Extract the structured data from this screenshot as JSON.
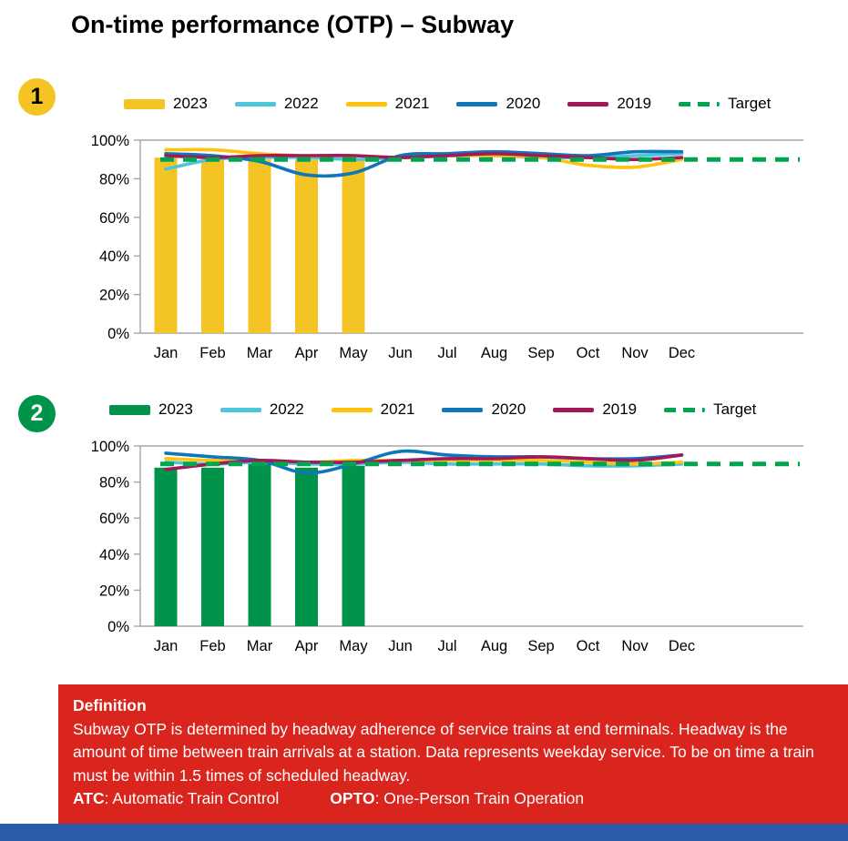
{
  "page": {
    "title": "On-time performance (OTP) – Subway",
    "colors": {
      "definition_bg": "#D9251D",
      "footer_bar": "#2B5CAA",
      "axis": "#A6A6A6",
      "text": "#000000"
    }
  },
  "chart_data": [
    {
      "type": "bar",
      "subtype": "bar-and-line combo, monthly OTP percent",
      "badge": {
        "label": "1",
        "bg": "#F4C425",
        "fg": "#000000"
      },
      "categories": [
        "Jan",
        "Feb",
        "Mar",
        "Apr",
        "May",
        "Jun",
        "Jul",
        "Aug",
        "Sep",
        "Oct",
        "Nov",
        "Dec"
      ],
      "ylim": [
        0,
        100
      ],
      "yticks": [
        0,
        20,
        40,
        60,
        80,
        100
      ],
      "ytick_suffix": "%",
      "legend_position": "top",
      "grid": "rules at 0% and 100% only",
      "series": [
        {
          "name": "2023",
          "type": "bar",
          "color": "#F4C425",
          "values": [
            91,
            91,
            90,
            90,
            90,
            null,
            null,
            null,
            null,
            null,
            null,
            null
          ]
        },
        {
          "name": "2022",
          "type": "line",
          "color": "#4DC5DB",
          "values": [
            85,
            90,
            91,
            91,
            90,
            91,
            92,
            92,
            91,
            91,
            92,
            93
          ]
        },
        {
          "name": "2021",
          "type": "line",
          "color": "#FFC20E",
          "values": [
            95,
            95,
            93,
            92,
            92,
            91,
            92,
            92,
            91,
            87,
            86,
            90
          ]
        },
        {
          "name": "2020",
          "type": "line",
          "color": "#0F76BB",
          "values": [
            93,
            92,
            89,
            82,
            83,
            92,
            93,
            94,
            93,
            92,
            94,
            94
          ]
        },
        {
          "name": "2019",
          "type": "line",
          "color": "#A21859",
          "values": [
            92,
            91,
            92,
            92,
            92,
            91,
            92,
            93,
            92,
            91,
            90,
            91
          ]
        },
        {
          "name": "Target",
          "type": "dashed",
          "color": "#00A550",
          "value": 90
        }
      ]
    },
    {
      "type": "bar",
      "subtype": "bar-and-line combo, monthly OTP percent",
      "badge": {
        "label": "2",
        "bg": "#00944A",
        "fg": "#FFFFFF"
      },
      "categories": [
        "Jan",
        "Feb",
        "Mar",
        "Apr",
        "May",
        "Jun",
        "Jul",
        "Aug",
        "Sep",
        "Oct",
        "Nov",
        "Dec"
      ],
      "ylim": [
        0,
        100
      ],
      "yticks": [
        0,
        20,
        40,
        60,
        80,
        100
      ],
      "ytick_suffix": "%",
      "legend_position": "top",
      "grid": "rules at 0% and 100% only",
      "series": [
        {
          "name": "2023",
          "type": "bar",
          "color": "#00944A",
          "values": [
            88,
            88,
            90,
            88,
            89,
            null,
            null,
            null,
            null,
            null,
            null,
            null
          ]
        },
        {
          "name": "2022",
          "type": "line",
          "color": "#4DC5DB",
          "values": [
            91,
            90,
            91,
            90,
            90,
            91,
            90,
            90,
            90,
            89,
            89,
            90
          ]
        },
        {
          "name": "2021",
          "type": "line",
          "color": "#FFC20E",
          "values": [
            93,
            92,
            92,
            91,
            92,
            92,
            92,
            92,
            92,
            91,
            90,
            91
          ]
        },
        {
          "name": "2020",
          "type": "line",
          "color": "#0F76BB",
          "values": [
            96,
            94,
            92,
            85,
            90,
            97,
            95,
            94,
            94,
            93,
            93,
            95
          ]
        },
        {
          "name": "2019",
          "type": "line",
          "color": "#A21859",
          "values": [
            87,
            90,
            92,
            91,
            91,
            92,
            93,
            93,
            94,
            93,
            92,
            95
          ]
        },
        {
          "name": "Target",
          "type": "dashed",
          "color": "#00A550",
          "value": 90
        }
      ]
    }
  ],
  "definition": {
    "heading": "Definition",
    "body": "Subway OTP is determined by headway adherence of service trains at end terminals. Headway is the amount of time between train arrivals at a station. Data represents weekday service. To be on time a train must be within 1.5 times of scheduled headway.",
    "term1": "ATC",
    "term1_rest": ": Automatic Train Control",
    "term2": "OPTO",
    "term2_rest": ": One-Person Train Operation"
  }
}
